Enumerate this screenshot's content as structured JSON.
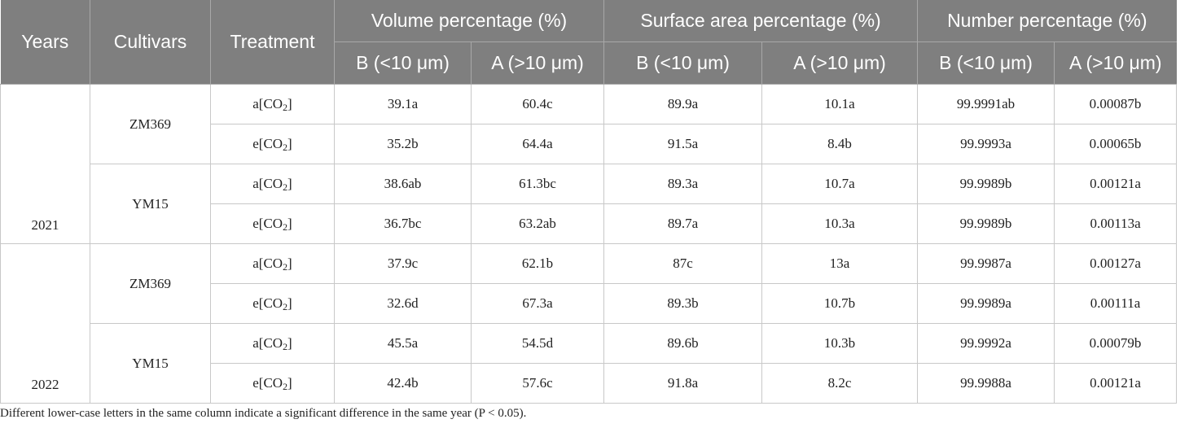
{
  "table": {
    "headers": {
      "years": "Years",
      "cultivars": "Cultivars",
      "treatment": "Treatment",
      "volume": "Volume percentage (%)",
      "surface": "Surface area percentage (%)",
      "number": "Number percentage (%)",
      "sub_b": "B (<10 μm)",
      "sub_a": "A (>10 μm)"
    },
    "treat_a_prefix": "a[CO",
    "treat_e_prefix": "e[CO",
    "treat_sub": "2",
    "treat_suffix": "]",
    "groups": [
      {
        "year": "2021",
        "cultivars": [
          {
            "name": "ZM369",
            "rows": [
              [
                "39.1a",
                "60.4c",
                "89.9a",
                "10.1a",
                "99.9991ab",
                "0.00087b"
              ],
              [
                "35.2b",
                "64.4a",
                "91.5a",
                "8.4b",
                "99.9993a",
                "0.00065b"
              ]
            ]
          },
          {
            "name": "YM15",
            "rows": [
              [
                "38.6ab",
                "61.3bc",
                "89.3a",
                "10.7a",
                "99.9989b",
                "0.00121a"
              ],
              [
                "36.7bc",
                "63.2ab",
                "89.7a",
                "10.3a",
                "99.9989b",
                "0.00113a"
              ]
            ]
          }
        ]
      },
      {
        "year": "2022",
        "cultivars": [
          {
            "name": "ZM369",
            "rows": [
              [
                "37.9c",
                "62.1b",
                "87c",
                "13a",
                "99.9987a",
                "0.00127a"
              ],
              [
                "32.6d",
                "67.3a",
                "89.3b",
                "10.7b",
                "99.9989a",
                "0.00111a"
              ]
            ]
          },
          {
            "name": "YM15",
            "rows": [
              [
                "45.5a",
                "54.5d",
                "89.6b",
                "10.3b",
                "99.9992a",
                "0.00079b"
              ],
              [
                "42.4b",
                "57.6c",
                "91.8a",
                "8.2c",
                "99.9988a",
                "0.00121a"
              ]
            ]
          }
        ]
      }
    ]
  },
  "footnote": "Different lower-case letters in the same column indicate a significant difference in the same year (P < 0.05).",
  "colors": {
    "header_bg": "#7f7f7f",
    "header_text": "#ffffff",
    "grid": "#c8c8c8"
  }
}
